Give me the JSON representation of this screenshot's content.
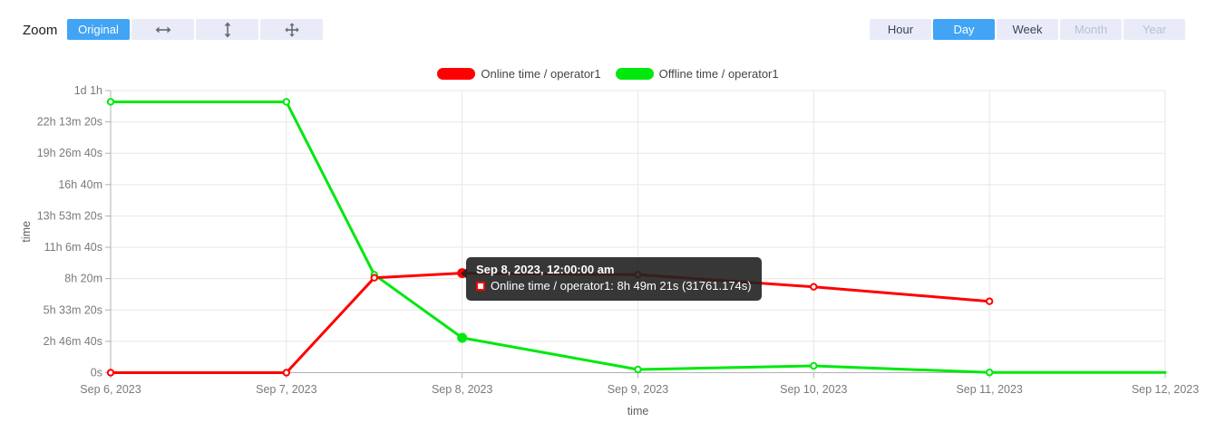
{
  "toolbar": {
    "zoom_label": "Zoom",
    "zoom_buttons": [
      {
        "label": "Original",
        "state": "selected"
      },
      {
        "icon": "horizontal-zoom-icon",
        "state": "normal"
      },
      {
        "icon": "vertical-zoom-icon",
        "state": "normal"
      },
      {
        "icon": "move-zoom-icon",
        "state": "normal"
      }
    ],
    "range_buttons": [
      {
        "label": "Hour",
        "state": "normal"
      },
      {
        "label": "Day",
        "state": "selected"
      },
      {
        "label": "Week",
        "state": "normal"
      },
      {
        "label": "Month",
        "state": "disabled"
      },
      {
        "label": "Year",
        "state": "disabled"
      }
    ]
  },
  "legend": [
    {
      "label": "Online time / operator1",
      "color": "#ff0000"
    },
    {
      "label": "Offline time / operator1",
      "color": "#00e80e"
    }
  ],
  "tooltip": {
    "title": "Sep 8, 2023, 12:00:00 am",
    "series": "Online time / operator1",
    "value": "8h 49m 21s (31761.174s)",
    "line": "Online time / operator1: 8h 49m 21s (31761.174s)"
  },
  "chart_data": {
    "type": "line",
    "title": "",
    "xlabel": "time",
    "ylabel": "time",
    "x_categories": [
      "Sep 6, 2023",
      "Sep 7, 2023",
      "Sep 8, 2023",
      "Sep 9, 2023",
      "Sep 10, 2023",
      "Sep 11, 2023",
      "Sep 12, 2023"
    ],
    "y_ticks": [
      {
        "v": 0,
        "label": "0s"
      },
      {
        "v": 10000,
        "label": "2h 46m 40s"
      },
      {
        "v": 20000,
        "label": "5h 33m 20s"
      },
      {
        "v": 30000,
        "label": "8h 20m"
      },
      {
        "v": 40000,
        "label": "11h 6m 40s"
      },
      {
        "v": 50000,
        "label": "13h 53m 20s"
      },
      {
        "v": 60000,
        "label": "16h 40m"
      },
      {
        "v": 70000,
        "label": "19h 26m 40s"
      },
      {
        "v": 80000,
        "label": "22h 13m 20s"
      },
      {
        "v": 90000,
        "label": "1d 1h"
      }
    ],
    "ylim": [
      0,
      90000
    ],
    "y_unit": "seconds",
    "grid": true,
    "legend_position": "top-center",
    "series": [
      {
        "name": "Online time / operator1",
        "color": "#ff0000",
        "points": [
          {
            "x": 0,
            "v": 0
          },
          {
            "x": 1,
            "v": 0
          },
          {
            "x": 1.5,
            "v": 30280
          },
          {
            "x": 2,
            "v": 31761.174
          },
          {
            "x": 3,
            "v": 31260
          },
          {
            "x": 4,
            "v": 27390
          },
          {
            "x": 5,
            "v": 22770
          }
        ],
        "end_marker": true
      },
      {
        "name": "Offline time / operator1",
        "color": "#00e80e",
        "points": [
          {
            "x": 0,
            "v": 86400
          },
          {
            "x": 1,
            "v": 86400
          },
          {
            "x": 1.5,
            "v": 31260
          },
          {
            "x": 2,
            "v": 11120
          },
          {
            "x": 3,
            "v": 1010
          },
          {
            "x": 4,
            "v": 2170
          },
          {
            "x": 5,
            "v": 80
          },
          {
            "x": 6,
            "v": 50
          }
        ],
        "end_marker": false
      }
    ],
    "hovered_x": 2,
    "hovered_x_label": "Sep 8, 2023, 12:00:00 am"
  }
}
